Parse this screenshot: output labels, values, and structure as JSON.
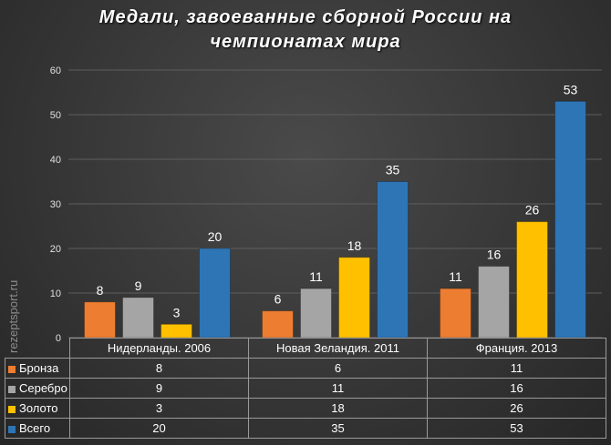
{
  "chart_data": {
    "type": "bar",
    "title_lines": [
      "Медали, завоеванные  сборной России на",
      "чемпионатах  мира"
    ],
    "categories": [
      "Нидерланды. 2006",
      "Новая Зеландия. 2011",
      "Франция. 2013"
    ],
    "series": [
      {
        "name": "Бронза",
        "color": "#ed7d31",
        "values": [
          8,
          6,
          11
        ]
      },
      {
        "name": "Серебро",
        "color": "#a5a5a5",
        "values": [
          9,
          11,
          16
        ]
      },
      {
        "name": "Золото",
        "color": "#ffc000",
        "values": [
          3,
          18,
          26
        ]
      },
      {
        "name": "Всего",
        "color": "#2e75b6",
        "values": [
          20,
          35,
          53
        ]
      }
    ],
    "yticks": [
      "0",
      "10",
      "20",
      "30",
      "40",
      "50",
      "60"
    ],
    "ylim": [
      0,
      60
    ],
    "grid": true,
    "legend": "data-table-below"
  },
  "watermark": "rezeptsport.ru"
}
